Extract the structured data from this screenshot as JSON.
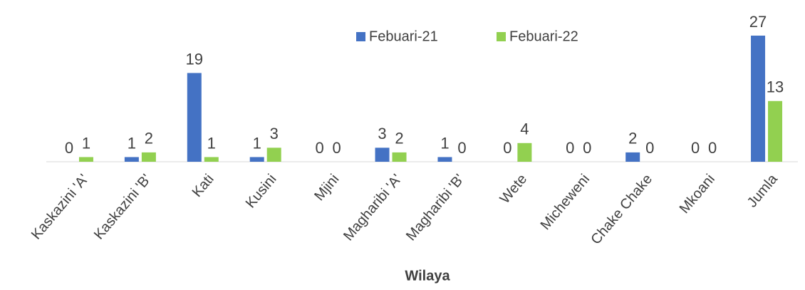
{
  "chart_data": {
    "type": "bar",
    "x_label": "Wilaya",
    "categories": [
      "Kaskazini 'A'",
      "Kaskazini 'B'",
      "Kati",
      "Kusini",
      "Mjini",
      "Magharibi 'A'",
      "Magharibi 'B'",
      "Wete",
      "Micheweni",
      "Chake Chake",
      "Mkoani",
      "Jumla"
    ],
    "series": [
      {
        "name": "Febuari-21",
        "color": "#4472c4",
        "values": [
          0,
          1,
          19,
          1,
          0,
          3,
          1,
          0,
          0,
          2,
          0,
          27
        ]
      },
      {
        "name": "Febuari-22",
        "color": "#92d050",
        "values": [
          1,
          2,
          1,
          3,
          0,
          2,
          0,
          4,
          0,
          0,
          0,
          13
        ]
      }
    ],
    "legend": "top"
  }
}
